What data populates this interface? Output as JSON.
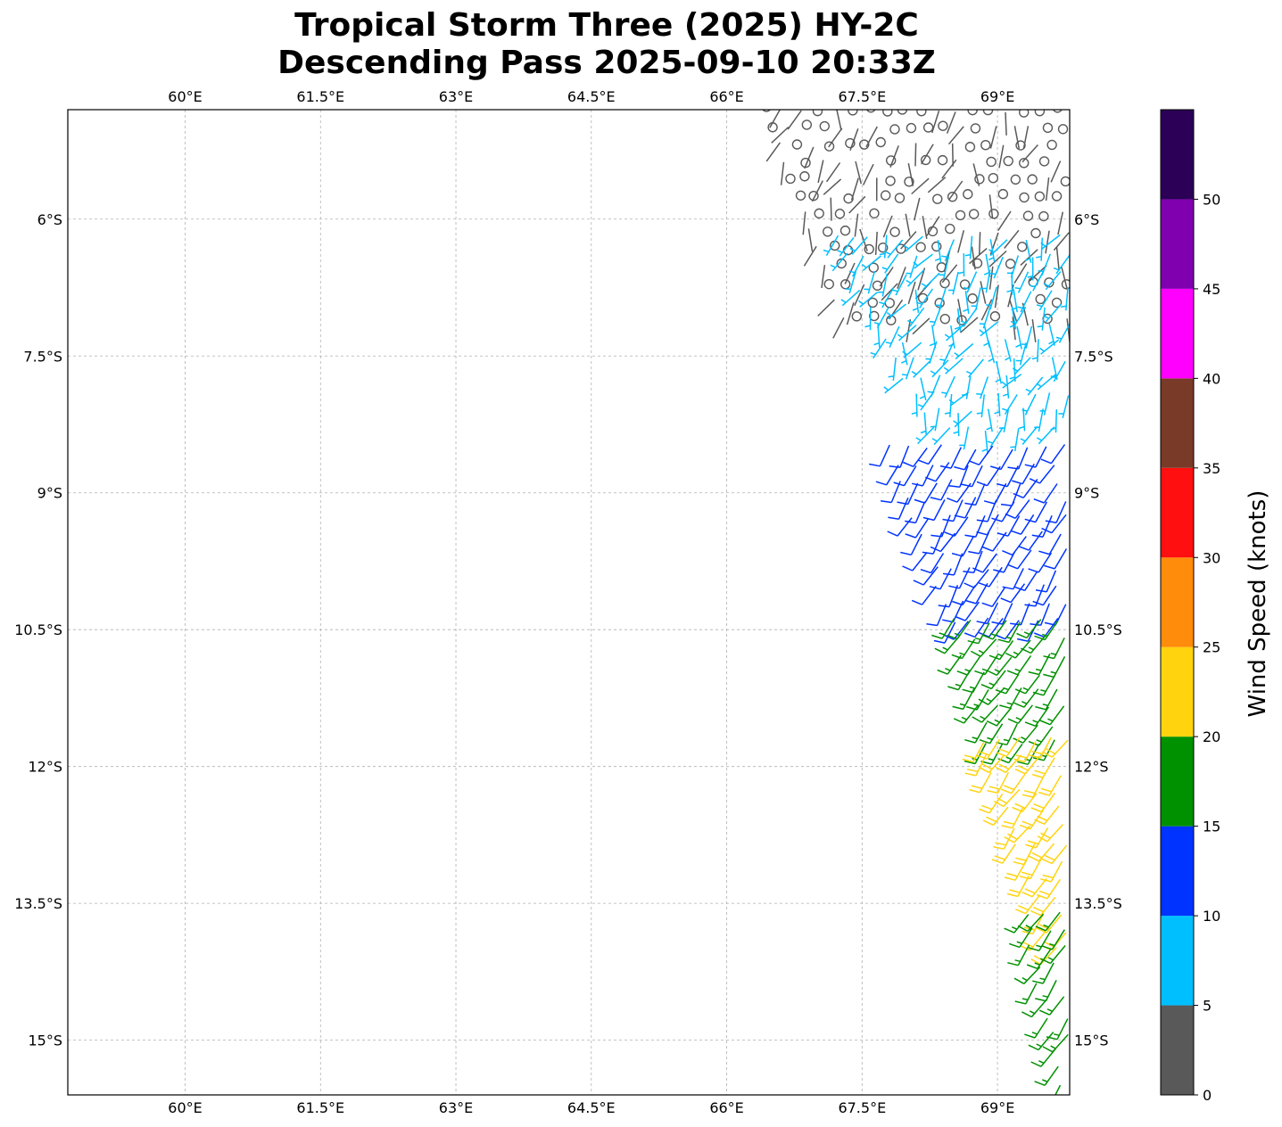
{
  "title": {
    "line1": "Tropical Storm Three (2025) HY-2C",
    "line2": "Descending Pass 2025-09-10 20:33Z"
  },
  "map": {
    "lon_range": [
      58.7,
      69.8
    ],
    "lat_range": [
      -15.6,
      -4.8
    ],
    "lon_ticks": [
      60,
      61.5,
      63,
      64.5,
      66,
      67.5,
      69
    ],
    "lon_tick_labels": [
      "60°E",
      "61.5°E",
      "63°E",
      "64.5°E",
      "66°E",
      "67.5°E",
      "69°E"
    ],
    "lat_ticks": [
      -6,
      -7.5,
      -9,
      -10.5,
      -12,
      -13.5,
      -15
    ],
    "lat_tick_labels": [
      "6°S",
      "7.5°S",
      "9°S",
      "10.5°S",
      "12°S",
      "13.5°S",
      "15°S"
    ],
    "gridlines": true
  },
  "colorbar": {
    "label": "Wind Speed (knots)",
    "tick_values": [
      0,
      5,
      10,
      15,
      20,
      25,
      30,
      35,
      40,
      45,
      50
    ],
    "tick_labels": [
      "0",
      "5",
      "10",
      "15",
      "20",
      "25",
      "30",
      "35",
      "40",
      "45",
      "50"
    ],
    "bins": [
      {
        "from": 0,
        "to": 5,
        "color": "#595959"
      },
      {
        "from": 5,
        "to": 10,
        "color": "#00bfff"
      },
      {
        "from": 10,
        "to": 15,
        "color": "#0033ff"
      },
      {
        "from": 15,
        "to": 20,
        "color": "#009100"
      },
      {
        "from": 20,
        "to": 25,
        "color": "#ffd40f"
      },
      {
        "from": 25,
        "to": 30,
        "color": "#ff8c0a"
      },
      {
        "from": 30,
        "to": 35,
        "color": "#ff0f0f"
      },
      {
        "from": 35,
        "to": 40,
        "color": "#7a3a28"
      },
      {
        "from": 40,
        "to": 45,
        "color": "#ff00ff"
      },
      {
        "from": 45,
        "to": 50,
        "color": "#8000b0"
      },
      {
        "from": 50,
        "to": 55,
        "color": "#2b0056"
      }
    ]
  },
  "chart_data": {
    "type": "scatter",
    "title": "Tropical Storm Three (2025) HY-2C Descending Pass 2025-09-10 20:33Z",
    "xlabel": "",
    "ylabel": "",
    "xlim": [
      58.7,
      69.8
    ],
    "ylim": [
      -15.6,
      -4.8
    ],
    "grid": true,
    "series": [
      {
        "name": "",
        "bin_knots": [
          0,
          5
        ],
        "region": {
          "lat": [
            -7.2,
            -4.8
          ],
          "lon_west": [
            66.4,
            67.3
          ],
          "lon_east": 69.8
        },
        "dir_deg": 105
      },
      {
        "name": "",
        "bin_knots": [
          5,
          10
        ],
        "region": {
          "lat": [
            -8.4,
            -6.2
          ],
          "lon_west": [
            67.2,
            68.3
          ],
          "lon_east": 69.8
        },
        "dir_deg": 110
      },
      {
        "name": "",
        "bin_knots": [
          10,
          15
        ],
        "region": {
          "lat": [
            -10.5,
            -8.5
          ],
          "lon_west": [
            67.8,
            68.5
          ],
          "lon_east": 69.8
        },
        "dir_deg": 120
      },
      {
        "name": "",
        "bin_knots": [
          15,
          20
        ],
        "region": {
          "lat": [
            -11.8,
            -10.4
          ],
          "lon_west": [
            68.5,
            68.9
          ],
          "lon_east": 69.8
        },
        "dir_deg": 125
      },
      {
        "name": "",
        "bin_knots": [
          20,
          25
        ],
        "region": {
          "lat": [
            -14.0,
            -11.7
          ],
          "lon_west": [
            68.8,
            69.6
          ],
          "lon_east": 69.8
        },
        "dir_deg": 125
      },
      {
        "name": "",
        "bin_knots": [
          15,
          20
        ],
        "region": {
          "lat": [
            -15.6,
            -13.6
          ],
          "lon_west": [
            69.3,
            69.7
          ],
          "lon_east": 69.8
        },
        "dir_deg": 125
      }
    ]
  }
}
